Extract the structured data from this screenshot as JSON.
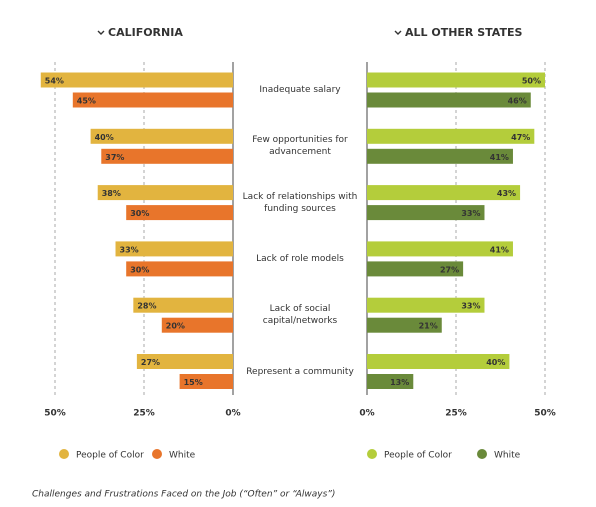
{
  "chart_data": {
    "type": "bar",
    "orientation": "horizontal",
    "categories": [
      "Inadequate salary",
      "Few opportunities for advancement",
      "Lack of relationships with funding sources",
      "Lack of role models",
      "Lack of social capital/networks",
      "Represent a community"
    ],
    "panels": [
      {
        "title": "CALIFORNIA",
        "reversed": true,
        "xlim": [
          0,
          55
        ],
        "xticks": [
          {
            "value": 50,
            "label": "50%"
          },
          {
            "value": 25,
            "label": "25%"
          },
          {
            "value": 0,
            "label": "0%"
          }
        ],
        "grid": true,
        "series": [
          {
            "name": "People of Color",
            "color": "#e2b43f",
            "values": [
              54,
              40,
              38,
              33,
              28,
              27
            ],
            "value_labels": [
              "54%",
              "40%",
              "38%",
              "33%",
              "28%",
              "27%"
            ]
          },
          {
            "name": "White",
            "color": "#e8752b",
            "values": [
              45,
              37,
              30,
              30,
              20,
              15
            ],
            "value_labels": [
              "45%",
              "37%",
              "30%",
              "30%",
              "20%",
              "15%"
            ]
          }
        ]
      },
      {
        "title": "ALL OTHER STATES",
        "reversed": false,
        "xlim": [
          0,
          55
        ],
        "xticks": [
          {
            "value": 0,
            "label": "0%"
          },
          {
            "value": 25,
            "label": "25%"
          },
          {
            "value": 50,
            "label": "50%"
          }
        ],
        "grid": true,
        "series": [
          {
            "name": "People of Color",
            "color": "#b4cd3b",
            "values": [
              50,
              47,
              43,
              41,
              33,
              40
            ],
            "value_labels": [
              "50%",
              "47%",
              "43%",
              "41%",
              "33%",
              "40%"
            ]
          },
          {
            "name": "White",
            "color": "#6a8a3a",
            "values": [
              46,
              41,
              33,
              27,
              21,
              13
            ],
            "value_labels": [
              "46%",
              "41%",
              "33%",
              "27%",
              "21%",
              "13%"
            ]
          }
        ]
      }
    ],
    "caption": "Challenges and Frustrations Faced on the Job (“Often” or “Always”)"
  }
}
